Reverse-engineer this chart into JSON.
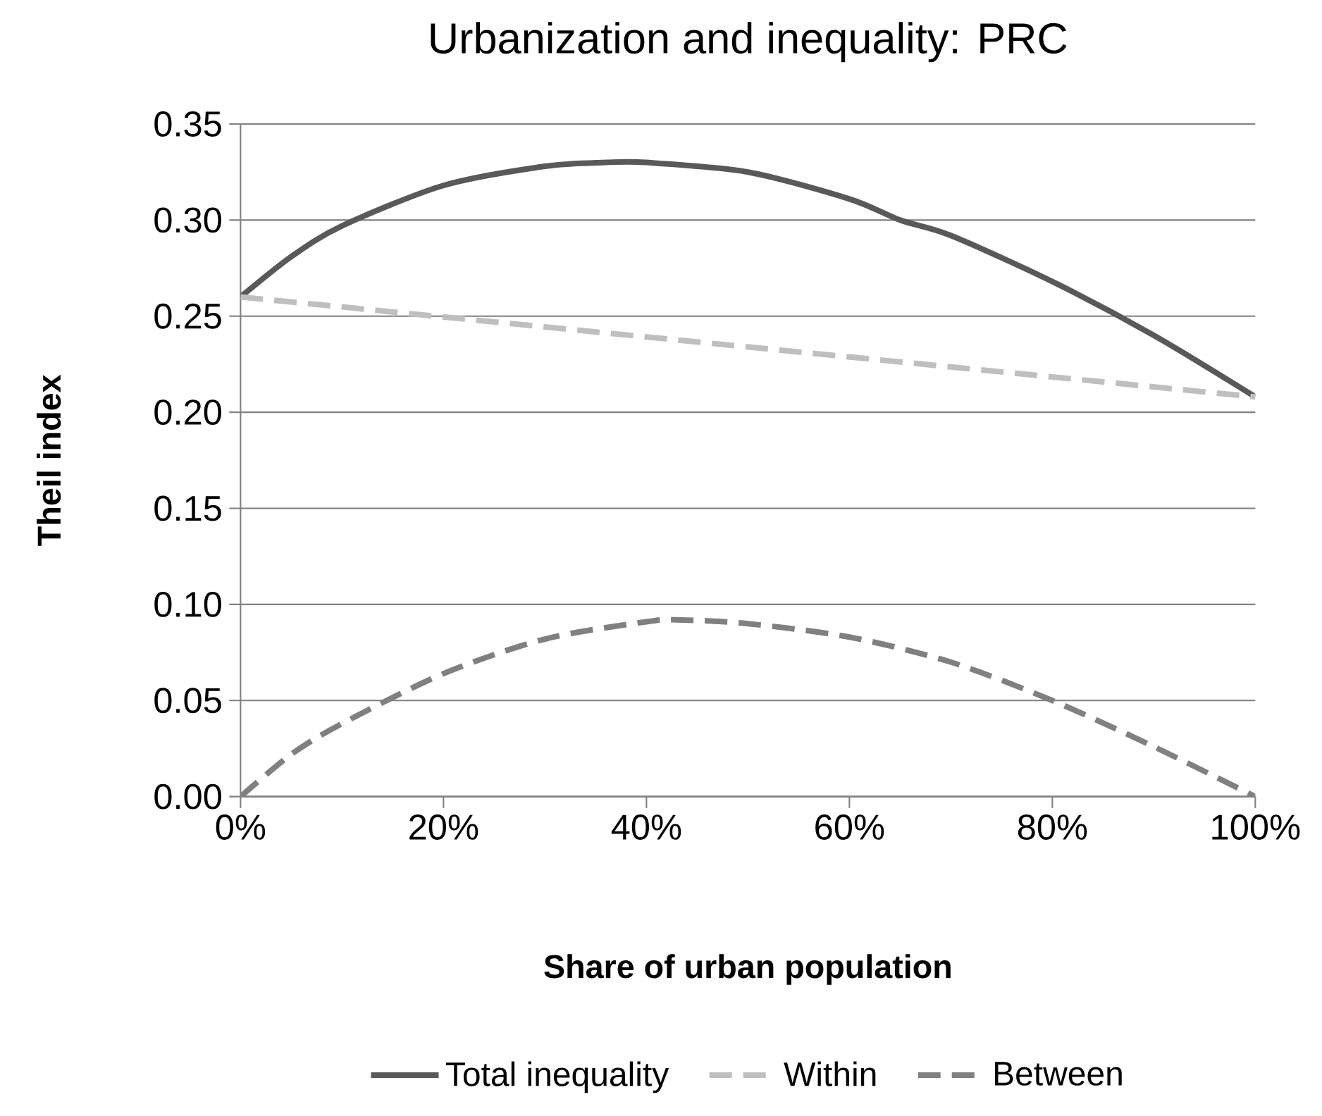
{
  "chart_data": {
    "type": "line",
    "title": "Urbanization and inequality: PRC",
    "xlabel": "Share of urban population",
    "ylabel": "Theil index",
    "xlim": [
      0,
      100
    ],
    "xticks": [
      {
        "value": 0,
        "label": "0%"
      },
      {
        "value": 20,
        "label": "20%"
      },
      {
        "value": 40,
        "label": "40%"
      },
      {
        "value": 60,
        "label": "60%"
      },
      {
        "value": 80,
        "label": "80%"
      },
      {
        "value": 100,
        "label": "100%"
      }
    ],
    "ylim": [
      0,
      0.35
    ],
    "yticks": [
      {
        "value": 0,
        "label": "0.00"
      },
      {
        "value": 0.05,
        "label": "0.05"
      },
      {
        "value": 0.1,
        "label": "0.10"
      },
      {
        "value": 0.15,
        "label": "0.15"
      },
      {
        "value": 0.2,
        "label": "0.20"
      },
      {
        "value": 0.25,
        "label": "0.25"
      },
      {
        "value": 0.3,
        "label": "0.30"
      },
      {
        "value": 0.35,
        "label": "0.35"
      }
    ],
    "grid": "y",
    "legend": "bottom",
    "marker": "none",
    "series": [
      {
        "name": "Total inequality",
        "color": "#595959",
        "line_style": "solid",
        "x": [
          0,
          5,
          10,
          20,
          30,
          36,
          40,
          50,
          60,
          65,
          70,
          80,
          90,
          100
        ],
        "values": [
          0.26,
          0.281,
          0.297,
          0.318,
          0.328,
          0.33,
          0.33,
          0.325,
          0.311,
          0.3,
          0.292,
          0.268,
          0.24,
          0.208
        ]
      },
      {
        "name": "Within",
        "color": "#bfbfbf",
        "line_style": "dashed",
        "x": [
          0,
          100
        ],
        "values": [
          0.26,
          0.208
        ]
      },
      {
        "name": "Between",
        "color": "#808080",
        "line_style": "dashed",
        "x": [
          0,
          5,
          10,
          20,
          30,
          40,
          43,
          50,
          60,
          70,
          80,
          90,
          100
        ],
        "values": [
          0,
          0.022,
          0.038,
          0.064,
          0.082,
          0.091,
          0.092,
          0.09,
          0.083,
          0.07,
          0.05,
          0.026,
          0
        ]
      }
    ]
  }
}
